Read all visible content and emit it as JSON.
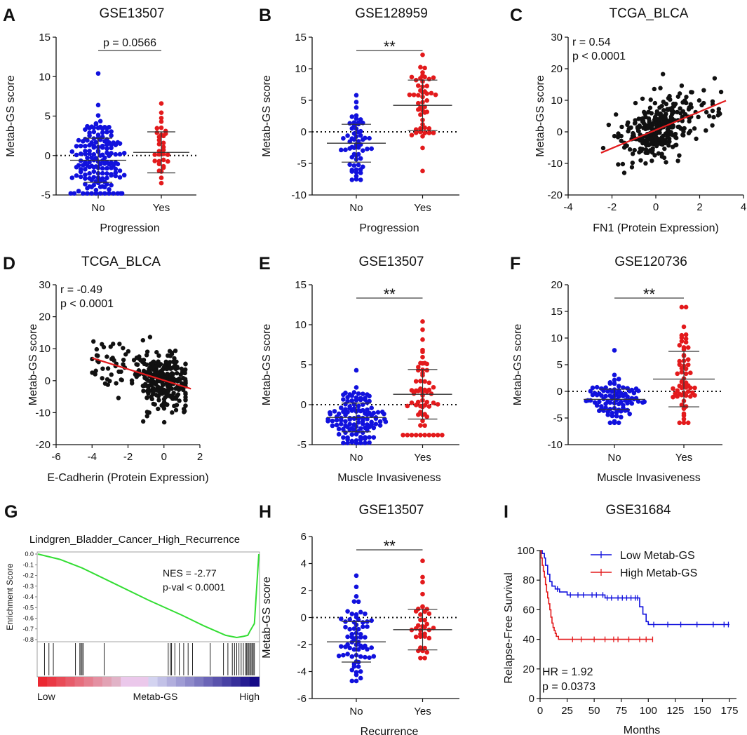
{
  "colors": {
    "blue": "#1111dd",
    "red": "#e31a1c",
    "black": "#111111",
    "green": "#33dd33",
    "regline": "#e31a1c"
  },
  "chart_data": [
    {
      "id": "A",
      "panel_label": "A",
      "type": "scatter",
      "title": "GSE13507",
      "xlabel": "Progression",
      "ylabel": "Metab-GS score",
      "ylim": [
        -5,
        15
      ],
      "yticks": [
        "-5",
        "0",
        "5",
        "10",
        "15"
      ],
      "categories": [
        "No",
        "Yes"
      ],
      "groups": [
        {
          "name": "No",
          "n": 160,
          "mean": -0.6,
          "sd": 2.8,
          "min": -4.8,
          "max": 10.4,
          "color": "blue"
        },
        {
          "name": "Yes",
          "n": 33,
          "mean": 0.4,
          "sd": 2.6,
          "min": -3.5,
          "max": 6.6,
          "color": "red"
        }
      ],
      "significance": "p = 0.0566"
    },
    {
      "id": "B",
      "panel_label": "B",
      "type": "scatter",
      "title": "GSE128959",
      "xlabel": "Progression",
      "ylabel": "Metab-GS score",
      "ylim": [
        -10,
        15
      ],
      "yticks": [
        "-10",
        "-5",
        "0",
        "5",
        "10",
        "15"
      ],
      "categories": [
        "No",
        "Yes"
      ],
      "groups": [
        {
          "name": "No",
          "n": 60,
          "mean": -1.8,
          "sd": 3.0,
          "min": -7.6,
          "max": 5.8,
          "color": "blue"
        },
        {
          "name": "Yes",
          "n": 50,
          "mean": 4.2,
          "sd": 4.0,
          "min": -6.2,
          "max": 12.2,
          "color": "red"
        }
      ],
      "significance": "**"
    },
    {
      "id": "C",
      "panel_label": "C",
      "type": "scatter",
      "title": "TCGA_BLCA",
      "xlabel": "FN1 (Protein Expression)",
      "ylabel": "Metab-GS score",
      "xlim": [
        -4,
        4
      ],
      "ylim": [
        -20,
        30
      ],
      "xticks": [
        "-4",
        "-2",
        "0",
        "2",
        "4"
      ],
      "yticks": [
        "-20",
        "-10",
        "0",
        "10",
        "20",
        "30"
      ],
      "n_points": 340,
      "r": 0.54,
      "slope": 2.9,
      "intercept": 0.6,
      "fit_x": [
        -2.5,
        3.2
      ],
      "stats": [
        "r = 0.54",
        "p < 0.0001"
      ]
    },
    {
      "id": "D",
      "panel_label": "D",
      "type": "scatter",
      "title": "TCGA_BLCA",
      "xlabel": "E-Cadherin (Protein Expression)",
      "ylabel": "Metab-GS score",
      "xlim": [
        -6,
        2
      ],
      "ylim": [
        -20,
        30
      ],
      "xticks": [
        "-6",
        "-4",
        "-2",
        "0",
        "2"
      ],
      "yticks": [
        "-20",
        "-10",
        "0",
        "10",
        "20",
        "30"
      ],
      "n_points": 340,
      "r": -0.49,
      "slope": -1.75,
      "intercept": 0.1,
      "fit_x": [
        -4.0,
        1.5
      ],
      "stats": [
        "r = -0.49",
        "p < 0.0001"
      ]
    },
    {
      "id": "E",
      "panel_label": "E",
      "type": "scatter",
      "title": "GSE13507",
      "xlabel": "Muscle Invasiveness",
      "ylabel": "Metab-GS score",
      "ylim": [
        -5,
        15
      ],
      "yticks": [
        "-5",
        "0",
        "5",
        "10",
        "15"
      ],
      "categories": [
        "No",
        "Yes"
      ],
      "groups": [
        {
          "name": "No",
          "n": 125,
          "mean": -1.6,
          "sd": 1.8,
          "min": -4.8,
          "max": 4.3,
          "color": "blue"
        },
        {
          "name": "Yes",
          "n": 62,
          "mean": 1.3,
          "sd": 3.1,
          "min": -3.8,
          "max": 10.4,
          "color": "red"
        }
      ],
      "significance": "**"
    },
    {
      "id": "F",
      "panel_label": "F",
      "type": "scatter",
      "title": "GSE120736",
      "xlabel": "Muscle Invasiveness",
      "ylabel": "Metab-GS score",
      "ylim": [
        -10,
        20
      ],
      "yticks": [
        "-10",
        "-5",
        "0",
        "5",
        "10",
        "15",
        "20"
      ],
      "categories": [
        "No",
        "Yes"
      ],
      "groups": [
        {
          "name": "No",
          "n": 90,
          "mean": -1.5,
          "sd": 1.9,
          "min": -5.9,
          "max": 7.7,
          "color": "blue"
        },
        {
          "name": "Yes",
          "n": 60,
          "mean": 2.3,
          "sd": 5.2,
          "min": -5.9,
          "max": 15.8,
          "color": "red"
        }
      ],
      "significance": "**"
    },
    {
      "id": "G",
      "panel_label": "G",
      "type": "line",
      "title": "Lindgren_Bladder_Cancer_High_Recurrence",
      "ylabel": "Enrichment Score",
      "ylim": [
        -0.8,
        0.0
      ],
      "yticks": [
        "0.0",
        "-0.1",
        "-0.2",
        "-0.3",
        "-0.4",
        "-0.5",
        "-0.6",
        "-0.7",
        "-0.8"
      ],
      "x_low_label": "Low",
      "x_mid_label": "Metab-GS",
      "x_high_label": "High",
      "es_curve": {
        "x": [
          0,
          0.1,
          0.2,
          0.35,
          0.5,
          0.65,
          0.75,
          0.85,
          0.9,
          0.93,
          0.95,
          0.96,
          0.98,
          1.0
        ],
        "y": [
          0,
          -0.05,
          -0.13,
          -0.28,
          -0.43,
          -0.57,
          -0.67,
          -0.76,
          -0.78,
          -0.77,
          -0.76,
          -0.72,
          -0.65,
          0
        ]
      },
      "hit_positions": [
        0.03,
        0.05,
        0.07,
        0.17,
        0.19,
        0.195,
        0.2,
        0.205,
        0.3,
        0.59,
        0.6,
        0.605,
        0.62,
        0.64,
        0.66,
        0.68,
        0.7,
        0.78,
        0.84,
        0.86,
        0.88,
        0.89,
        0.9,
        0.91,
        0.92,
        0.93,
        0.94,
        0.945,
        0.95,
        0.955,
        0.96,
        0.965,
        0.97,
        0.975,
        0.98
      ],
      "stats": [
        "NES = -2.77",
        "p-val < 0.0001"
      ]
    },
    {
      "id": "H",
      "panel_label": "H",
      "type": "scatter",
      "title": "GSE13507",
      "xlabel": "Recurrence",
      "ylabel": "Metab-GS score",
      "ylim": [
        -6,
        6
      ],
      "yticks": [
        "-6",
        "-4",
        "-2",
        "0",
        "2",
        "4",
        "6"
      ],
      "categories": [
        "No",
        "Yes"
      ],
      "groups": [
        {
          "name": "No",
          "n": 70,
          "mean": -1.8,
          "sd": 1.5,
          "min": -4.7,
          "max": 3.1,
          "color": "blue"
        },
        {
          "name": "Yes",
          "n": 36,
          "mean": -0.9,
          "sd": 1.5,
          "min": -3.0,
          "max": 4.2,
          "color": "red"
        }
      ],
      "significance": "**"
    },
    {
      "id": "I",
      "panel_label": "I",
      "type": "line",
      "title": "GSE31684",
      "xlabel": "Months",
      "ylabel": "Relapse-Free Survival",
      "xlim": [
        0,
        175
      ],
      "ylim": [
        0,
        100
      ],
      "xticks": [
        "0",
        "25",
        "50",
        "75",
        "100",
        "125",
        "150",
        "175"
      ],
      "yticks": [
        "0",
        "20",
        "40",
        "60",
        "80",
        "100"
      ],
      "series": [
        {
          "name": "Low Metab-GS",
          "color": "blue",
          "steps": [
            [
              0,
              100
            ],
            [
              2,
              98
            ],
            [
              4,
              95
            ],
            [
              5,
              90
            ],
            [
              7,
              84
            ],
            [
              9,
              79
            ],
            [
              11,
              76
            ],
            [
              14,
              74
            ],
            [
              18,
              72
            ],
            [
              25,
              70
            ],
            [
              60,
              68
            ],
            [
              92,
              62
            ],
            [
              95,
              57
            ],
            [
              98,
              52
            ],
            [
              100,
              50
            ],
            [
              175,
              50
            ]
          ],
          "censor": [
            16,
            28,
            35,
            40,
            48,
            52,
            58,
            62,
            66,
            72,
            76,
            80,
            84,
            88,
            90,
            105,
            118,
            130,
            145,
            160,
            170,
            174
          ]
        },
        {
          "name": "High Metab-GS",
          "color": "red",
          "steps": [
            [
              0,
              100
            ],
            [
              1,
              95
            ],
            [
              2,
              90
            ],
            [
              3,
              86
            ],
            [
              4,
              82
            ],
            [
              5,
              77
            ],
            [
              6,
              72
            ],
            [
              7,
              68
            ],
            [
              8,
              64
            ],
            [
              9,
              60
            ],
            [
              10,
              55
            ],
            [
              11,
              51
            ],
            [
              12,
              48
            ],
            [
              13,
              46
            ],
            [
              14,
              44
            ],
            [
              15,
              42
            ],
            [
              17,
              40
            ],
            [
              104,
              40
            ]
          ],
          "censor": [
            30,
            38,
            50,
            60,
            68,
            72,
            82,
            92,
            98,
            104
          ]
        }
      ],
      "stats": [
        "HR = 1.92",
        "p = 0.0373"
      ]
    }
  ]
}
